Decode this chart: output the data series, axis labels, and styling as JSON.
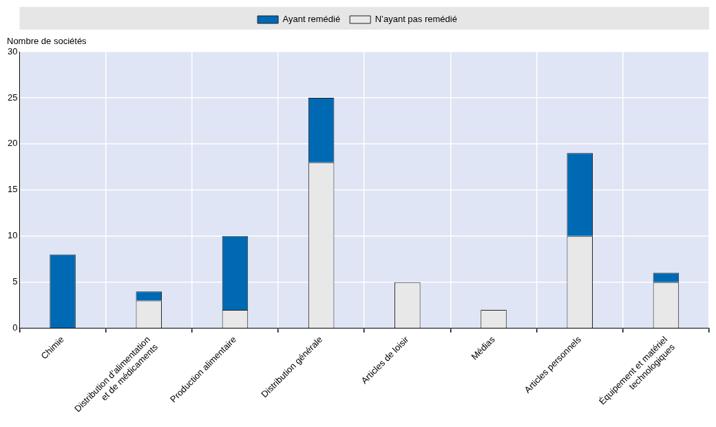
{
  "chart_data": {
    "type": "bar",
    "ylabel": "Nombre de sociétés",
    "categories": [
      "Chimie",
      "Distribution d’alimentation\net de médicaments",
      "Production alimentaire",
      "Distribution générale",
      "Articles de loisir",
      "Médias",
      "Articles personnels",
      "Équipement et matériel\ntechnologiques"
    ],
    "series": [
      {
        "name": "N’ayant pas remédié",
        "color": "#e8e8e8",
        "values": [
          0,
          3,
          2,
          18,
          5,
          2,
          10,
          5
        ]
      },
      {
        "name": "Ayant remédié",
        "color": "#0069b4",
        "values": [
          8,
          1,
          8,
          7,
          0,
          0,
          9,
          1
        ]
      }
    ],
    "stacked": true,
    "ylim": [
      0,
      30
    ],
    "yticks": [
      0,
      5,
      10,
      15,
      20,
      25,
      30
    ],
    "grid": true,
    "legend": "top"
  }
}
